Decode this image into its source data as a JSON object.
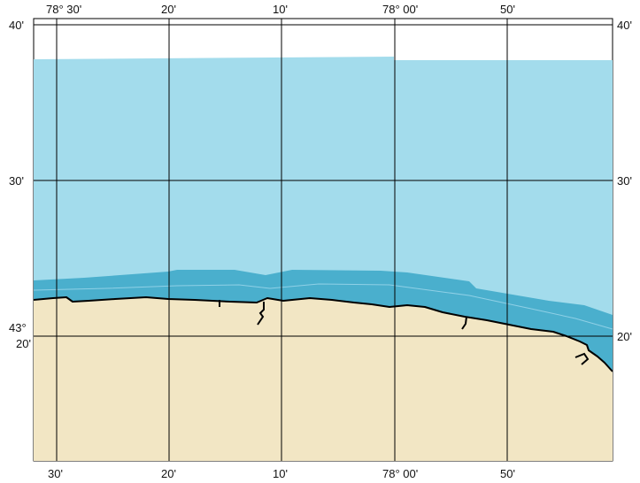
{
  "map": {
    "top_labels": [
      "78° 30'",
      "20'",
      "10'",
      "78° 00'",
      "50'"
    ],
    "bottom_labels": [
      "30'",
      "20'",
      "10'",
      "78° 00'",
      "50'"
    ],
    "left_labels": [
      "40'",
      "30'",
      "43°",
      "20'"
    ],
    "right_labels": [
      "40'",
      "30'",
      "20'"
    ],
    "colors": {
      "deep_water": "#a3dcec",
      "shallow_water": "#4aafcd",
      "land": "#f2e6c4",
      "coastline": "#000000",
      "grid": "#000000"
    }
  }
}
